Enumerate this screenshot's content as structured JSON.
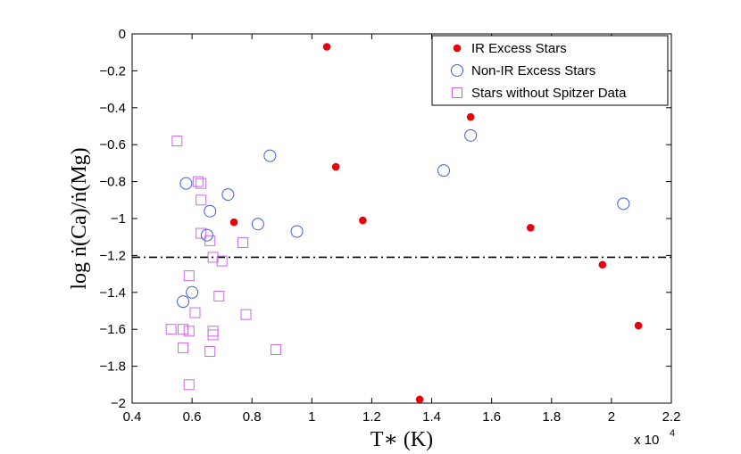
{
  "chart_data": {
    "type": "scatter",
    "xlabel": "T∗ (K)",
    "ylabel": "log ṅ(Ca)/ṅ(Mg)",
    "xlim": [
      0.4,
      2.2
    ],
    "ylim": [
      -2,
      0
    ],
    "x_multiplier": "x 10",
    "x_multiplier_exponent": "4",
    "xticks": [
      0.4,
      0.6,
      0.8,
      1,
      1.2,
      1.4,
      1.6,
      1.8,
      2,
      2.2
    ],
    "xtick_labels": [
      "0.4",
      "0.6",
      "0.8",
      "1",
      "1.2",
      "1.4",
      "1.6",
      "1.8",
      "2",
      "2.2"
    ],
    "yticks": [
      0,
      -0.2,
      -0.4,
      -0.6,
      -0.8,
      -1,
      -1.2,
      -1.4,
      -1.6,
      -1.8,
      -2
    ],
    "ytick_labels": [
      "0",
      "−0.2",
      "−0.4",
      "−0.6",
      "−0.8",
      "−1",
      "−1.2",
      "−1.4",
      "−1.6",
      "−1.8",
      "−2"
    ],
    "reference_line": {
      "y": -1.21,
      "style": "dash-dot"
    },
    "legend_position": "top-right",
    "series": [
      {
        "name": "IR Excess Stars",
        "marker": "filled-circle",
        "color": "#e8000b",
        "points": [
          {
            "x": 1.05,
            "y": -0.07
          },
          {
            "x": 1.08,
            "y": -0.72
          },
          {
            "x": 0.74,
            "y": -1.02
          },
          {
            "x": 1.17,
            "y": -1.01
          },
          {
            "x": 1.53,
            "y": -0.45
          },
          {
            "x": 1.73,
            "y": -1.05
          },
          {
            "x": 1.97,
            "y": -1.25
          },
          {
            "x": 2.09,
            "y": -1.58
          },
          {
            "x": 1.36,
            "y": -1.98
          }
        ]
      },
      {
        "name": "Non-IR Excess Stars",
        "marker": "open-circle",
        "color": "#3a5fd9",
        "points": [
          {
            "x": 0.58,
            "y": -0.81
          },
          {
            "x": 0.72,
            "y": -0.87
          },
          {
            "x": 0.66,
            "y": -0.96
          },
          {
            "x": 0.65,
            "y": -1.09
          },
          {
            "x": 0.82,
            "y": -1.03
          },
          {
            "x": 0.86,
            "y": -0.66
          },
          {
            "x": 0.95,
            "y": -1.07
          },
          {
            "x": 0.6,
            "y": -1.4
          },
          {
            "x": 0.57,
            "y": -1.45
          },
          {
            "x": 1.44,
            "y": -0.74
          },
          {
            "x": 1.53,
            "y": -0.55
          },
          {
            "x": 2.04,
            "y": -0.92
          }
        ]
      },
      {
        "name": "Stars without Spitzer Data",
        "marker": "open-square",
        "color": "#cc66e8",
        "points": [
          {
            "x": 0.55,
            "y": -0.58
          },
          {
            "x": 0.62,
            "y": -0.8
          },
          {
            "x": 0.63,
            "y": -0.81
          },
          {
            "x": 0.63,
            "y": -0.9
          },
          {
            "x": 0.63,
            "y": -1.08
          },
          {
            "x": 0.66,
            "y": -1.12
          },
          {
            "x": 0.67,
            "y": -1.21
          },
          {
            "x": 0.7,
            "y": -1.23
          },
          {
            "x": 0.77,
            "y": -1.13
          },
          {
            "x": 0.59,
            "y": -1.31
          },
          {
            "x": 0.69,
            "y": -1.42
          },
          {
            "x": 0.61,
            "y": -1.51
          },
          {
            "x": 0.78,
            "y": -1.52
          },
          {
            "x": 0.53,
            "y": -1.6
          },
          {
            "x": 0.57,
            "y": -1.6
          },
          {
            "x": 0.59,
            "y": -1.61
          },
          {
            "x": 0.67,
            "y": -1.61
          },
          {
            "x": 0.67,
            "y": -1.63
          },
          {
            "x": 0.57,
            "y": -1.7
          },
          {
            "x": 0.66,
            "y": -1.72
          },
          {
            "x": 0.88,
            "y": -1.71
          },
          {
            "x": 0.59,
            "y": -1.9
          }
        ]
      }
    ]
  }
}
